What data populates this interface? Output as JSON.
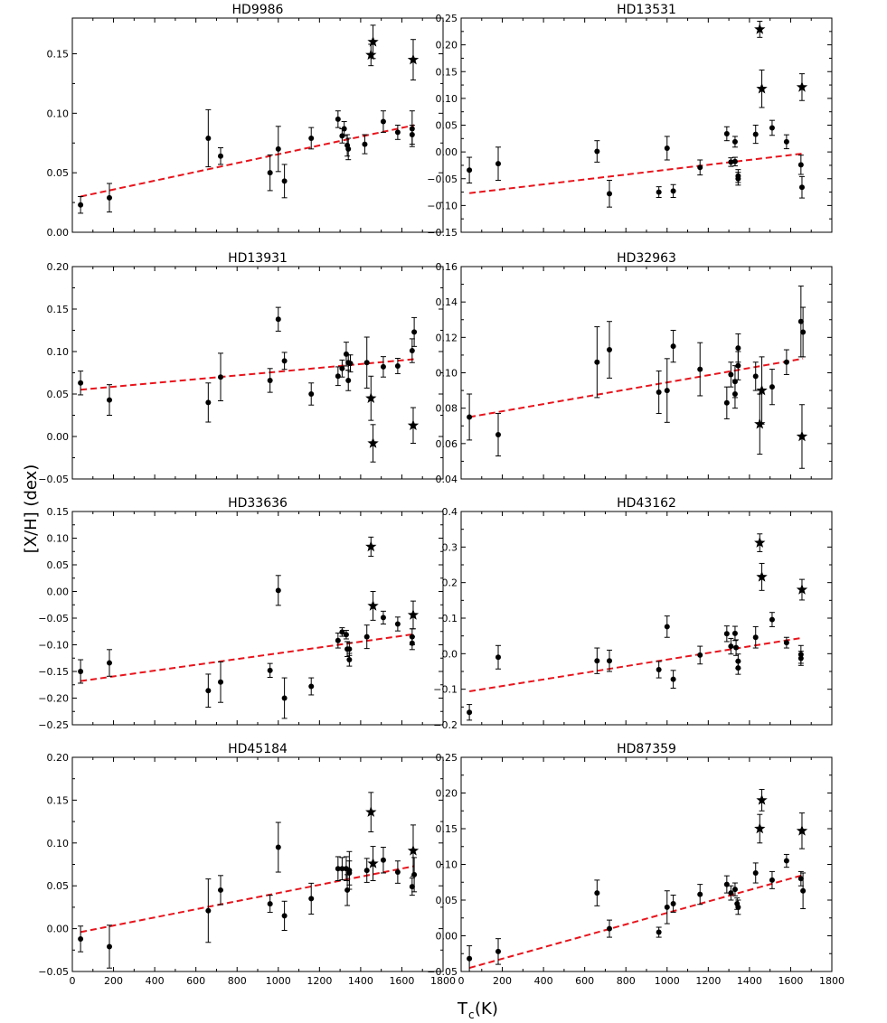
{
  "figure": {
    "ylabel": "[X/H] (dex)",
    "xlabel_main": "T",
    "xlabel_sub": "c",
    "xlabel_unit": " (K)"
  },
  "chart_data": [
    {
      "type": "scatter",
      "title": "HD9986",
      "xlim": [
        0,
        1800
      ],
      "ylim": [
        0.0,
        0.18
      ],
      "yticks": [
        "0.00",
        "0.05",
        "0.10",
        "0.15"
      ],
      "ytick_values": [
        0.0,
        0.05,
        0.1,
        0.15
      ],
      "xticks": [
        "0",
        "200",
        "400",
        "600",
        "800",
        "1000",
        "1200",
        "1400",
        "1600",
        "1800"
      ],
      "fit": {
        "x0": 40,
        "y0": 0.03,
        "x1": 1660,
        "y1": 0.09
      },
      "points": [
        [
          40,
          0.023,
          0.007
        ],
        [
          180,
          0.029,
          0.012
        ],
        [
          660,
          0.079,
          0.024
        ],
        [
          720,
          0.064,
          0.007
        ],
        [
          960,
          0.05,
          0.015
        ],
        [
          1000,
          0.07,
          0.019
        ],
        [
          1030,
          0.043,
          0.014
        ],
        [
          1160,
          0.079,
          0.009
        ],
        [
          1290,
          0.095,
          0.007
        ],
        [
          1310,
          0.081,
          0.006
        ],
        [
          1320,
          0.087,
          0.006
        ],
        [
          1335,
          0.073,
          0.009
        ],
        [
          1340,
          0.07,
          0.009
        ],
        [
          1420,
          0.074,
          0.008
        ],
        [
          1510,
          0.093,
          0.009
        ],
        [
          1580,
          0.084,
          0.006
        ],
        [
          1650,
          0.087,
          0.015
        ],
        [
          1650,
          0.082,
          0.008
        ]
      ],
      "stars": [
        [
          1450,
          0.149,
          0.009
        ],
        [
          1460,
          0.16,
          0.014
        ],
        [
          1655,
          0.145,
          0.017
        ]
      ]
    },
    {
      "type": "scatter",
      "title": "HD13531",
      "xlim": [
        0,
        1800
      ],
      "ylim": [
        -0.15,
        0.25
      ],
      "yticks": [
        "−0.15",
        "−0.10",
        "−0.05",
        "0.00",
        "0.05",
        "0.10",
        "0.15",
        "0.20",
        "0.25"
      ],
      "ytick_values": [
        -0.15,
        -0.1,
        -0.05,
        0.0,
        0.05,
        0.1,
        0.15,
        0.2,
        0.25
      ],
      "xticks": [
        "0",
        "200",
        "400",
        "600",
        "800",
        "1000",
        "1200",
        "1400",
        "1600",
        "1800"
      ],
      "fit": {
        "x0": 40,
        "y0": -0.077,
        "x1": 1660,
        "y1": -0.003
      },
      "points": [
        [
          40,
          -0.034,
          0.024
        ],
        [
          180,
          -0.022,
          0.031
        ],
        [
          660,
          0.001,
          0.02
        ],
        [
          720,
          -0.078,
          0.025
        ],
        [
          960,
          -0.075,
          0.01
        ],
        [
          1000,
          0.007,
          0.022
        ],
        [
          1030,
          -0.073,
          0.012
        ],
        [
          1160,
          -0.029,
          0.014
        ],
        [
          1290,
          0.034,
          0.013
        ],
        [
          1310,
          -0.019,
          0.008
        ],
        [
          1330,
          -0.018,
          0.008
        ],
        [
          1330,
          0.019,
          0.01
        ],
        [
          1345,
          -0.05,
          0.012
        ],
        [
          1345,
          -0.045,
          0.012
        ],
        [
          1430,
          0.033,
          0.017
        ],
        [
          1510,
          0.045,
          0.014
        ],
        [
          1580,
          0.019,
          0.013
        ],
        [
          1650,
          -0.024,
          0.018
        ],
        [
          1655,
          -0.066,
          0.02
        ]
      ],
      "stars": [
        [
          1450,
          0.229,
          0.015
        ],
        [
          1460,
          0.118,
          0.035
        ],
        [
          1655,
          0.121,
          0.025
        ]
      ]
    },
    {
      "type": "scatter",
      "title": "HD13931",
      "xlim": [
        0,
        1800
      ],
      "ylim": [
        -0.05,
        0.2
      ],
      "yticks": [
        "−0.05",
        "0.00",
        "0.05",
        "0.10",
        "0.15",
        "0.20"
      ],
      "ytick_values": [
        -0.05,
        0.0,
        0.05,
        0.1,
        0.15,
        0.2
      ],
      "xticks": [
        "0",
        "200",
        "400",
        "600",
        "800",
        "1000",
        "1200",
        "1400",
        "1600",
        "1800"
      ],
      "fit": {
        "x0": 40,
        "y0": 0.055,
        "x1": 1660,
        "y1": 0.091
      },
      "points": [
        [
          40,
          0.063,
          0.014
        ],
        [
          180,
          0.043,
          0.018
        ],
        [
          660,
          0.04,
          0.023
        ],
        [
          720,
          0.07,
          0.028
        ],
        [
          960,
          0.066,
          0.014
        ],
        [
          1000,
          0.138,
          0.014
        ],
        [
          1030,
          0.089,
          0.01
        ],
        [
          1160,
          0.05,
          0.013
        ],
        [
          1290,
          0.071,
          0.011
        ],
        [
          1310,
          0.08,
          0.01
        ],
        [
          1330,
          0.097,
          0.014
        ],
        [
          1340,
          0.066,
          0.012
        ],
        [
          1340,
          0.087,
          0.009
        ],
        [
          1350,
          0.086,
          0.01
        ],
        [
          1430,
          0.087,
          0.03
        ],
        [
          1510,
          0.082,
          0.012
        ],
        [
          1580,
          0.083,
          0.009
        ],
        [
          1650,
          0.101,
          0.014
        ],
        [
          1660,
          0.123,
          0.017
        ]
      ],
      "stars": [
        [
          1450,
          0.045,
          0.026
        ],
        [
          1460,
          -0.008,
          0.022
        ],
        [
          1655,
          0.013,
          0.021
        ]
      ]
    },
    {
      "type": "scatter",
      "title": "HD32963",
      "xlim": [
        0,
        1800
      ],
      "ylim": [
        0.04,
        0.16
      ],
      "yticks": [
        "0.04",
        "0.06",
        "0.08",
        "0.10",
        "0.12",
        "0.14",
        "0.16"
      ],
      "ytick_values": [
        0.04,
        0.06,
        0.08,
        0.1,
        0.12,
        0.14,
        0.16
      ],
      "xticks": [
        "0",
        "200",
        "400",
        "600",
        "800",
        "1000",
        "1200",
        "1400",
        "1600",
        "1800"
      ],
      "fit": {
        "x0": 40,
        "y0": 0.075,
        "x1": 1660,
        "y1": 0.108
      },
      "points": [
        [
          40,
          0.075,
          0.013
        ],
        [
          180,
          0.065,
          0.012
        ],
        [
          660,
          0.106,
          0.02
        ],
        [
          720,
          0.113,
          0.016
        ],
        [
          960,
          0.089,
          0.012
        ],
        [
          1000,
          0.09,
          0.018
        ],
        [
          1030,
          0.115,
          0.009
        ],
        [
          1160,
          0.102,
          0.015
        ],
        [
          1290,
          0.083,
          0.009
        ],
        [
          1310,
          0.099,
          0.007
        ],
        [
          1330,
          0.088,
          0.008
        ],
        [
          1330,
          0.095,
          0.009
        ],
        [
          1345,
          0.104,
          0.008
        ],
        [
          1345,
          0.114,
          0.008
        ],
        [
          1430,
          0.098,
          0.008
        ],
        [
          1510,
          0.092,
          0.01
        ],
        [
          1580,
          0.106,
          0.007
        ],
        [
          1650,
          0.129,
          0.02
        ],
        [
          1660,
          0.123,
          0.014
        ]
      ],
      "stars": [
        [
          1450,
          0.071,
          0.017
        ],
        [
          1460,
          0.09,
          0.019
        ],
        [
          1655,
          0.064,
          0.018
        ]
      ]
    },
    {
      "type": "scatter",
      "title": "HD33636",
      "xlim": [
        0,
        1800
      ],
      "ylim": [
        -0.25,
        0.15
      ],
      "yticks": [
        "−0.25",
        "−0.20",
        "−0.15",
        "−0.10",
        "−0.05",
        "0.00",
        "0.05",
        "0.10",
        "0.15"
      ],
      "ytick_values": [
        -0.25,
        -0.2,
        -0.15,
        -0.1,
        -0.05,
        0.0,
        0.05,
        0.1,
        0.15
      ],
      "xticks": [
        "0",
        "200",
        "400",
        "600",
        "800",
        "1000",
        "1200",
        "1400",
        "1600",
        "1800"
      ],
      "fit": {
        "x0": 40,
        "y0": -0.168,
        "x1": 1660,
        "y1": -0.08
      },
      "points": [
        [
          40,
          -0.15,
          0.022
        ],
        [
          180,
          -0.134,
          0.025
        ],
        [
          660,
          -0.186,
          0.031
        ],
        [
          720,
          -0.17,
          0.038
        ],
        [
          960,
          -0.148,
          0.013
        ],
        [
          1000,
          0.002,
          0.028
        ],
        [
          1030,
          -0.2,
          0.038
        ],
        [
          1160,
          -0.178,
          0.016
        ],
        [
          1290,
          -0.092,
          0.014
        ],
        [
          1310,
          -0.076,
          0.008
        ],
        [
          1330,
          -0.081,
          0.008
        ],
        [
          1335,
          -0.108,
          0.014
        ],
        [
          1345,
          -0.128,
          0.012
        ],
        [
          1345,
          -0.108,
          0.012
        ],
        [
          1430,
          -0.085,
          0.022
        ],
        [
          1510,
          -0.049,
          0.012
        ],
        [
          1580,
          -0.061,
          0.013
        ],
        [
          1650,
          -0.097,
          0.012
        ],
        [
          1650,
          -0.085,
          0.015
        ]
      ],
      "stars": [
        [
          1450,
          0.084,
          0.018
        ],
        [
          1460,
          -0.027,
          0.027
        ],
        [
          1655,
          -0.044,
          0.026
        ]
      ]
    },
    {
      "type": "scatter",
      "title": "HD43162",
      "xlim": [
        0,
        1800
      ],
      "ylim": [
        -0.2,
        0.4
      ],
      "yticks": [
        "−0.2",
        "−0.1",
        "0.0",
        "0.1",
        "0.2",
        "0.3",
        "0.4"
      ],
      "ytick_values": [
        -0.2,
        -0.1,
        0.0,
        0.1,
        0.2,
        0.3,
        0.4
      ],
      "xticks": [
        "0",
        "200",
        "400",
        "600",
        "800",
        "1000",
        "1200",
        "1400",
        "1600",
        "1800"
      ],
      "fit": {
        "x0": 40,
        "y0": -0.106,
        "x1": 1660,
        "y1": 0.045
      },
      "points": [
        [
          40,
          -0.165,
          0.022
        ],
        [
          180,
          -0.01,
          0.033
        ],
        [
          660,
          -0.02,
          0.036
        ],
        [
          720,
          -0.02,
          0.03
        ],
        [
          960,
          -0.045,
          0.023
        ],
        [
          1000,
          0.076,
          0.03
        ],
        [
          1030,
          -0.072,
          0.025
        ],
        [
          1160,
          -0.004,
          0.025
        ],
        [
          1290,
          0.056,
          0.022
        ],
        [
          1310,
          0.021,
          0.022
        ],
        [
          1330,
          0.057,
          0.02
        ],
        [
          1335,
          0.017,
          0.022
        ],
        [
          1345,
          -0.021,
          0.02
        ],
        [
          1345,
          -0.04,
          0.018
        ],
        [
          1430,
          0.046,
          0.03
        ],
        [
          1510,
          0.096,
          0.02
        ],
        [
          1580,
          0.031,
          0.015
        ],
        [
          1650,
          -0.002,
          0.025
        ],
        [
          1650,
          -0.013,
          0.02
        ]
      ],
      "stars": [
        [
          1450,
          0.312,
          0.025
        ],
        [
          1460,
          0.216,
          0.038
        ],
        [
          1655,
          0.18,
          0.029
        ]
      ]
    },
    {
      "type": "scatter",
      "title": "HD45184",
      "xlim": [
        0,
        1800
      ],
      "ylim": [
        -0.05,
        0.2
      ],
      "yticks": [
        "−0.05",
        "0.00",
        "0.05",
        "0.10",
        "0.15",
        "0.20"
      ],
      "ytick_values": [
        -0.05,
        0.0,
        0.05,
        0.1,
        0.15,
        0.2
      ],
      "xticks": [
        "0",
        "200",
        "400",
        "600",
        "800",
        "1000",
        "1200",
        "1400",
        "1600",
        "1800"
      ],
      "fit": {
        "x0": 40,
        "y0": -0.004,
        "x1": 1660,
        "y1": 0.073
      },
      "points": [
        [
          40,
          -0.012,
          0.015
        ],
        [
          180,
          -0.021,
          0.025
        ],
        [
          660,
          0.021,
          0.037
        ],
        [
          720,
          0.045,
          0.017
        ],
        [
          960,
          0.029,
          0.01
        ],
        [
          1000,
          0.095,
          0.029
        ],
        [
          1030,
          0.015,
          0.017
        ],
        [
          1160,
          0.035,
          0.018
        ],
        [
          1290,
          0.07,
          0.014
        ],
        [
          1310,
          0.07,
          0.013
        ],
        [
          1330,
          0.07,
          0.014
        ],
        [
          1335,
          0.045,
          0.018
        ],
        [
          1345,
          0.068,
          0.022
        ],
        [
          1345,
          0.065,
          0.014
        ],
        [
          1430,
          0.068,
          0.014
        ],
        [
          1510,
          0.08,
          0.015
        ],
        [
          1580,
          0.066,
          0.013
        ],
        [
          1650,
          0.049,
          0.01
        ],
        [
          1660,
          0.063,
          0.02
        ]
      ],
      "stars": [
        [
          1450,
          0.136,
          0.023
        ],
        [
          1460,
          0.076,
          0.02
        ],
        [
          1655,
          0.091,
          0.03
        ]
      ]
    },
    {
      "type": "scatter",
      "title": "HD87359",
      "xlim": [
        0,
        1800
      ],
      "ylim": [
        -0.05,
        0.25
      ],
      "yticks": [
        "−0.05",
        "0.00",
        "0.05",
        "0.10",
        "0.15",
        "0.20",
        "0.25"
      ],
      "ytick_values": [
        -0.05,
        0.0,
        0.05,
        0.1,
        0.15,
        0.2,
        0.25
      ],
      "xticks": [
        "0",
        "200",
        "400",
        "600",
        "800",
        "1000",
        "1200",
        "1400",
        "1600",
        "1800"
      ],
      "fit": {
        "x0": 40,
        "y0": -0.045,
        "x1": 1660,
        "y1": 0.085
      },
      "points": [
        [
          40,
          -0.032,
          0.018
        ],
        [
          180,
          -0.022,
          0.018
        ],
        [
          660,
          0.06,
          0.018
        ],
        [
          720,
          0.01,
          0.012
        ],
        [
          960,
          0.005,
          0.007
        ],
        [
          1000,
          0.04,
          0.023
        ],
        [
          1030,
          0.045,
          0.012
        ],
        [
          1160,
          0.058,
          0.014
        ],
        [
          1290,
          0.072,
          0.012
        ],
        [
          1310,
          0.06,
          0.01
        ],
        [
          1330,
          0.065,
          0.009
        ],
        [
          1340,
          0.045,
          0.008
        ],
        [
          1345,
          0.04,
          0.01
        ],
        [
          1430,
          0.088,
          0.014
        ],
        [
          1510,
          0.078,
          0.012
        ],
        [
          1580,
          0.105,
          0.009
        ],
        [
          1650,
          0.08,
          0.01
        ],
        [
          1660,
          0.063,
          0.025
        ]
      ],
      "stars": [
        [
          1450,
          0.15,
          0.02
        ],
        [
          1460,
          0.19,
          0.015
        ],
        [
          1655,
          0.147,
          0.025
        ]
      ]
    }
  ]
}
